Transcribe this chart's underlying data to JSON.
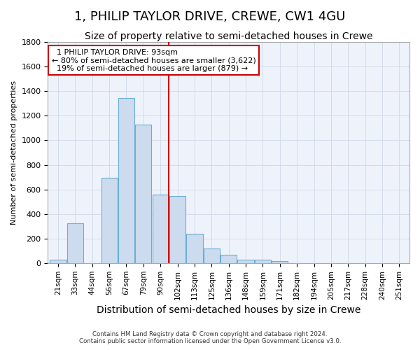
{
  "title": "1, PHILIP TAYLOR DRIVE, CREWE, CW1 4GU",
  "subtitle": "Size of property relative to semi-detached houses in Crewe",
  "xlabel": "Distribution of semi-detached houses by size in Crewe",
  "ylabel": "Number of semi-detached properties",
  "footer1": "Contains HM Land Registry data © Crown copyright and database right 2024.",
  "footer2": "Contains public sector information licensed under the Open Government Licence v3.0.",
  "categories": [
    "21sqm",
    "33sqm",
    "44sqm",
    "56sqm",
    "67sqm",
    "79sqm",
    "90sqm",
    "102sqm",
    "113sqm",
    "125sqm",
    "136sqm",
    "148sqm",
    "159sqm",
    "171sqm",
    "182sqm",
    "194sqm",
    "205sqm",
    "217sqm",
    "228sqm",
    "240sqm",
    "251sqm"
  ],
  "values": [
    25,
    325,
    0,
    695,
    1345,
    1130,
    555,
    545,
    240,
    120,
    65,
    30,
    25,
    15,
    0,
    0,
    0,
    0,
    0,
    0,
    0
  ],
  "bar_color": "#ccdcee",
  "bar_edge_color": "#6aaed6",
  "grid_color": "#d0d8e8",
  "background_color": "#ffffff",
  "plot_bg_color": "#eef2fa",
  "annotation_box_color": "#ffffff",
  "annotation_box_edge": "#cc0000",
  "property_line_index": 6.5,
  "property_sqm": 93,
  "smaller_pct": 80,
  "smaller_count": 3622,
  "larger_pct": 19,
  "larger_count": 879,
  "property_label": "1 PHILIP TAYLOR DRIVE: 93sqm",
  "ylim": [
    0,
    1800
  ],
  "yticks": [
    0,
    200,
    400,
    600,
    800,
    1000,
    1200,
    1400,
    1600,
    1800
  ],
  "title_fontsize": 13,
  "subtitle_fontsize": 10,
  "xlabel_fontsize": 10,
  "ylabel_fontsize": 8
}
